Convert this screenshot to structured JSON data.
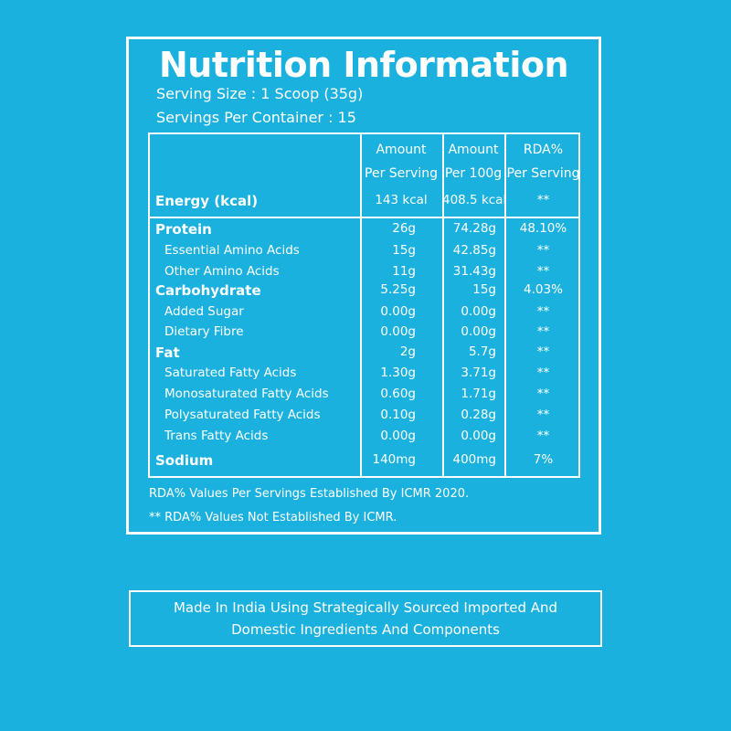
{
  "colors": {
    "background": "#1bb1de",
    "foreground": "#ffffff"
  },
  "title": "Nutrition Information",
  "serving_size": "Serving Size : 1 Scoop (35g)",
  "servings_per_container": "Servings Per Container : 15",
  "columns": [
    {
      "line1": "Amount",
      "line2": "Per Serving"
    },
    {
      "line1": "Amount",
      "line2": "Per 100g"
    },
    {
      "line1": "RDA%",
      "line2": "Per Serving"
    }
  ],
  "rows": [
    {
      "name": "Energy (kcal)",
      "per_serving": "143 kcal",
      "per_100g": "408.5 kcal",
      "rda": "**"
    },
    {
      "name": "Protein",
      "per_serving": "26g",
      "per_100g": "74.28g",
      "rda": "48.10%"
    },
    {
      "name": "Essential Amino Acids",
      "per_serving": "15g",
      "per_100g": "42.85g",
      "rda": "**"
    },
    {
      "name": "Other Amino Acids",
      "per_serving": "11g",
      "per_100g": "31.43g",
      "rda": "**"
    },
    {
      "name": "Carbohydrate",
      "per_serving": "5.25g",
      "per_100g": "15g",
      "rda": "4.03%"
    },
    {
      "name": "Added Sugar",
      "per_serving": "0.00g",
      "per_100g": "0.00g",
      "rda": "**"
    },
    {
      "name": "Dietary Fibre",
      "per_serving": "0.00g",
      "per_100g": "0.00g",
      "rda": "**"
    },
    {
      "name": "Fat",
      "per_serving": "2g",
      "per_100g": "5.7g",
      "rda": "**"
    },
    {
      "name": "Saturated Fatty Acids",
      "per_serving": "1.30g",
      "per_100g": "3.71g",
      "rda": "**"
    },
    {
      "name": "Monosaturated Fatty Acids",
      "per_serving": "0.60g",
      "per_100g": "1.71g",
      "rda": "**"
    },
    {
      "name": "Polysaturated Fatty Acids",
      "per_serving": "0.10g",
      "per_100g": "0.28g",
      "rda": "**"
    },
    {
      "name": "Trans Fatty Acids",
      "per_serving": "0.00g",
      "per_100g": "0.00g",
      "rda": "**"
    },
    {
      "name": "Sodium",
      "per_serving": "140mg",
      "per_100g": "400mg",
      "rda": "7%"
    }
  ],
  "notes": [
    "RDA%  Values Per Servings Established By ICMR 2020.",
    "** RDA%  Values Not Established By ICMR."
  ],
  "footer": {
    "line1": "Made In India Using Strategically Sourced Imported And",
    "line2": "Domestic Ingredients And Components"
  }
}
